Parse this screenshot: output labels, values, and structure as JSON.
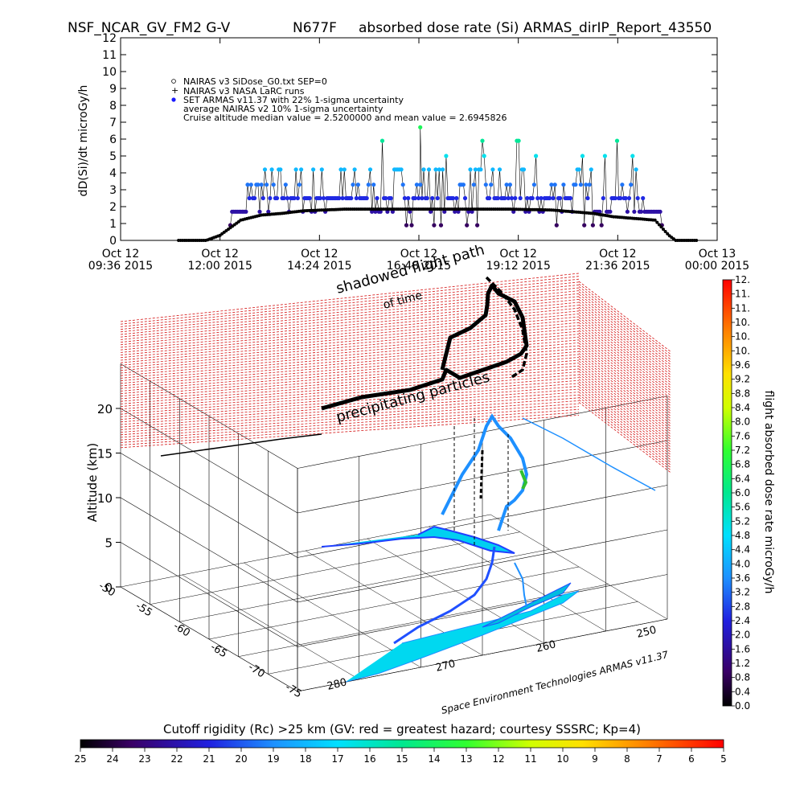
{
  "header": {
    "left": "NSF_NCAR_GV_FM2 G-V",
    "middle": "N677F",
    "right": "absorbed dose rate (Si) ARMAS_dirIP_Report_43550"
  },
  "chart_data": [
    {
      "type": "scatter",
      "ylabel": "dD(Si)/dt microGy/h",
      "ylim": [
        0,
        12
      ],
      "y_ticks": [
        "0",
        "1",
        "2",
        "3",
        "4",
        "5",
        "6",
        "7",
        "8",
        "9",
        "10",
        "11",
        "12"
      ],
      "x_ticks": [
        {
          "date": "Oct 12",
          "time": "09:36 2015"
        },
        {
          "date": "Oct 12",
          "time": "12:00 2015"
        },
        {
          "date": "Oct 12",
          "time": "14:24 2015"
        },
        {
          "date": "Oct 12",
          "time": "16:48 2015"
        },
        {
          "date": "Oct 12",
          "time": "19:12 2015"
        },
        {
          "date": "Oct 12",
          "time": "21:36 2015"
        },
        {
          "date": "Oct 13",
          "time": "00:00 2015"
        }
      ],
      "legend": {
        "placement": "top-left",
        "entries": [
          "NAIRAS v3 SiDose_G0.txt SEP=0",
          "NAIRAS v3 NASA LaRC runs",
          "SET ARMAS v11.37 with 22% 1-sigma uncertainty",
          "average NAIRAS v2 10% 1-sigma uncertainty",
          "Cruise altitude median value = 2.5200000 and mean value = 2.6945826"
        ]
      },
      "nairas_curve": {
        "x": [
          "11:00",
          "11:40",
          "12:00",
          "12:30",
          "13:00",
          "13:30",
          "14:00",
          "15:00",
          "16:00",
          "17:00",
          "18:00",
          "19:00",
          "20:00",
          "21:00",
          "21:30",
          "22:00",
          "22:30",
          "22:50",
          "23:00",
          "23:30"
        ],
        "y": [
          0,
          0,
          0.3,
          1.2,
          1.5,
          1.6,
          1.75,
          1.85,
          1.85,
          1.85,
          1.85,
          1.85,
          1.8,
          1.6,
          1.4,
          1.3,
          1.2,
          0.3,
          0,
          0
        ]
      },
      "armas_levels": {
        "x_range": [
          "12:15",
          "22:40"
        ],
        "y": [
          0.9,
          1.7,
          2.5,
          3.3,
          4.2,
          5.0,
          5.9,
          6.7
        ]
      }
    },
    {
      "type": "scatter",
      "zlabel": "Altitude (km)",
      "z_ticks": [
        "0",
        "5",
        "10",
        "15",
        "20"
      ],
      "lat_ticks": [
        "-50",
        "-55",
        "-60",
        "-65",
        "-70",
        "-75"
      ],
      "lon_ticks": [
        "280",
        "270",
        "260",
        "250"
      ],
      "annotations": [
        "shadowed flight path",
        "of time",
        "precipitating particles"
      ],
      "credit": "Space Environment Technologies ARMAS v11.37"
    }
  ],
  "colorbar_right": {
    "label": "flight absorbed dose rate microGy/h",
    "ticks": [
      "0.0",
      "0.4",
      "0.8",
      "1.2",
      "1.6",
      "2.0",
      "2.4",
      "2.8",
      "3.2",
      "3.6",
      "4.0",
      "4.4",
      "4.8",
      "5.2",
      "5.6",
      "6.0",
      "6.4",
      "6.8",
      "7.2",
      "7.6",
      "8.0",
      "8.4",
      "8.8",
      "9.2",
      "9.6",
      "10.",
      "10.",
      "10.",
      "11.",
      "11.",
      "12."
    ]
  },
  "colorbar_bottom": {
    "label": "Cutoff rigidity (Rc) >25 km (GV: red = greatest hazard; courtesy SSSRC; Kp=4)",
    "ticks": [
      "25",
      "24",
      "23",
      "22",
      "21",
      "20",
      "19",
      "18",
      "17",
      "16",
      "15",
      "14",
      "13",
      "12",
      "11",
      "10",
      "9",
      "8",
      "7",
      "6",
      "5"
    ]
  }
}
